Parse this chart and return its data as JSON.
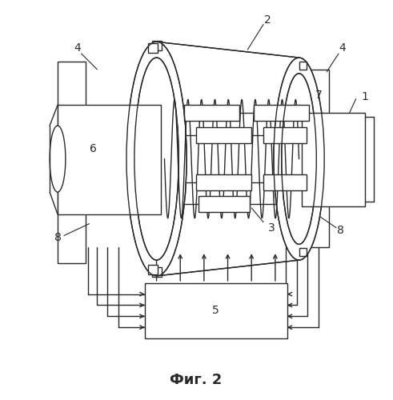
{
  "title": "Фиг. 2",
  "background_color": "#ffffff",
  "line_color": "#2a2a2a",
  "lw": 1.0,
  "fig_w": 4.91,
  "fig_h": 5.0,
  "dpi": 100
}
